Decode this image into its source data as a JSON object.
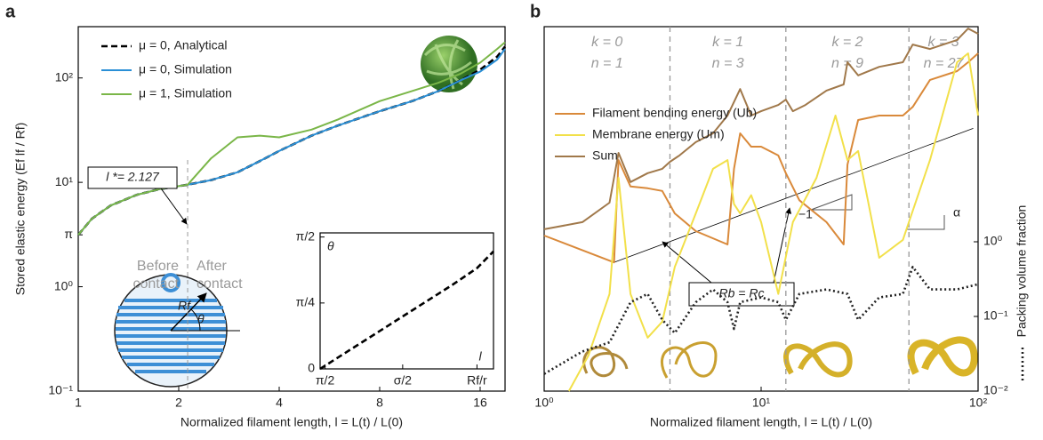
{
  "chart_data": [
    {
      "type": "line",
      "panel_label": "a",
      "xlabel": "Normalized filament length, l = L(t) / L(0)",
      "ylabel": "Stored elastic energy (Ef lf / Rf)",
      "xscale": "log",
      "yscale": "log",
      "xlim": [
        1,
        19
      ],
      "ylim": [
        0.1,
        310
      ],
      "xticks": [
        1,
        2,
        4,
        8,
        16
      ],
      "yticks": [
        {
          "value": 0.1,
          "label": "10⁻¹"
        },
        {
          "value": 1,
          "label": "10⁰"
        },
        {
          "value": 3.14159,
          "label": "π"
        },
        {
          "value": 10,
          "label": "10¹"
        },
        {
          "value": 100,
          "label": "10²"
        }
      ],
      "legend": "upper left",
      "x": [
        1,
        1.1,
        1.25,
        1.5,
        1.75,
        2,
        2.127,
        2.5,
        3,
        3.5,
        4,
        5,
        6,
        8,
        10,
        12,
        14,
        16,
        18,
        19
      ],
      "series": [
        {
          "name": "μ = 0, Analytical",
          "color": "#000000",
          "line_style": "dashed",
          "values": [
            3.14,
            4.5,
            6,
            7.6,
            8.6,
            9.2,
            9.5,
            10.5,
            12.5,
            16,
            20,
            28,
            35,
            48,
            60,
            75,
            95,
            120,
            160,
            200
          ]
        },
        {
          "name": "μ = 0, Simulation",
          "color": "#2a8fd6",
          "line_style": "solid",
          "values": [
            3.14,
            4.5,
            6,
            7.6,
            8.6,
            9.2,
            9.5,
            10.5,
            12.5,
            16,
            20,
            28,
            35,
            48,
            60,
            75,
            95,
            115,
            150,
            190
          ]
        },
        {
          "name": "μ = 1, Simulation",
          "color": "#7ab648",
          "line_style": "solid",
          "values": [
            3.14,
            4.5,
            6,
            7.6,
            8.6,
            9.2,
            9.5,
            17,
            27,
            28,
            27,
            32,
            40,
            60,
            75,
            90,
            110,
            140,
            190,
            220
          ]
        }
      ],
      "contact": {
        "value": 2.127,
        "label": "l *= 2.127"
      },
      "before_contact": [
        "Before",
        "contact"
      ],
      "after_contact": [
        "After",
        "contact"
      ]
    },
    {
      "type": "line",
      "xlabel": "l",
      "ylabel": "θ",
      "xscale": "linear",
      "yscale": "linear",
      "xlim": [
        0,
        1.05
      ],
      "ylim": [
        0,
        1.62
      ],
      "xticks": [
        {
          "value": 0.03,
          "label": "π/2"
        },
        {
          "value": 0.5,
          "label": "σ/2"
        },
        {
          "value": 0.95,
          "label": "Rf/r"
        }
      ],
      "yticks": [
        0,
        {
          "value": 0.785,
          "label": "π/4"
        },
        {
          "value": 1.571,
          "label": "π/2"
        }
      ],
      "x": [
        0,
        0.2,
        0.4,
        0.6,
        0.8,
        0.95,
        1.05
      ],
      "series": [
        {
          "color": "#000000",
          "line_style": "dashed",
          "values": [
            0,
            0.25,
            0.5,
            0.75,
            1.0,
            1.2,
            1.4
          ]
        }
      ]
    },
    {
      "type": "line",
      "panel_label": "b",
      "xlabel": "Normalized filament length, l = L(t) / L(0)",
      "xscale": "log",
      "yscale": "log",
      "xlim": [
        1,
        100
      ],
      "ylim": [
        0.01,
        760
      ],
      "y2lim": [
        0.01,
        760
      ],
      "xticks": [
        {
          "value": 1,
          "label": "10⁰"
        },
        {
          "value": 10,
          "label": "10¹"
        },
        {
          "value": 100,
          "label": "10²"
        }
      ],
      "y2ticks": [
        {
          "value": 0.01,
          "label": "10⁻²"
        },
        {
          "value": 0.1,
          "label": "10⁻¹"
        },
        {
          "value": 1,
          "label": "10⁰"
        }
      ],
      "legend": "upper left",
      "stage_bounds": [
        3.8,
        13,
        48
      ],
      "stages": [
        {
          "k": "k = 0",
          "n": "n = 1"
        },
        {
          "k": "k = 1",
          "n": "n = 3"
        },
        {
          "k": "k = 2",
          "n": "n = 9"
        },
        {
          "k": "k = 3",
          "n": "n = 27"
        }
      ],
      "series": [
        {
          "name": "Filament bending energy (Ub)",
          "color": "#d9893a",
          "line_style": "solid",
          "x": [
            1,
            2.1,
            2.2,
            2.5,
            3,
            3.5,
            4,
            5,
            7,
            7.5,
            8,
            9,
            10,
            12,
            13,
            15,
            20,
            24,
            25,
            28,
            35,
            45,
            50,
            60,
            80,
            90,
            100
          ],
          "values": [
            1.21,
            0.53,
            12.4,
            5.5,
            5.2,
            4.8,
            2.4,
            1.39,
            0.92,
            9.5,
            28.3,
            18.8,
            18.8,
            14.3,
            8.3,
            3.6,
            1.83,
            0.92,
            10.8,
            42.8,
            49,
            49,
            64,
            147,
            193,
            254,
            334
          ]
        },
        {
          "name": "Membrane energy (Um)",
          "color": "#f2e04a",
          "line_style": "solid",
          "x": [
            1.3,
            1.6,
            2,
            2.2,
            2.5,
            3,
            3.5,
            4,
            5,
            6,
            7,
            7.5,
            8,
            9,
            10,
            12,
            14,
            18,
            22,
            25,
            28,
            35,
            45,
            60,
            80,
            90,
            100
          ],
          "values": [
            0.01,
            0.03,
            0.2,
            7.2,
            0.2,
            0.052,
            0.085,
            0.46,
            2.4,
            9.5,
            12.4,
            3.2,
            2.4,
            4.2,
            1.83,
            0.2,
            1.83,
            7.2,
            49,
            12.4,
            16.4,
            0.61,
            1.06,
            12.4,
            254,
            334,
            49
          ]
        },
        {
          "name": "Sum",
          "color": "#a0784a",
          "line_style": "solid",
          "x": [
            1,
            1.5,
            2,
            2.2,
            2.5,
            3,
            3.5,
            3.8,
            4.2,
            5,
            6,
            7,
            8,
            9,
            10,
            12,
            13,
            14,
            16,
            20,
            24,
            25,
            28,
            35,
            45,
            50,
            60,
            80,
            90,
            100
          ],
          "values": [
            1.47,
            1.83,
            3.34,
            15.5,
            6.3,
            8.3,
            9.5,
            11.8,
            14.3,
            21.6,
            28.3,
            49,
            111,
            49,
            56,
            68,
            80,
            56,
            68,
            106,
            128,
            254,
            169,
            220,
            254,
            438,
            382,
            505,
            718,
            611
          ]
        },
        {
          "name": "Packing volume fraction",
          "color": "#222222",
          "line_style": "dotted",
          "axis": "y2",
          "x": [
            1,
            1.5,
            2,
            2.5,
            3,
            3.5,
            4,
            5,
            6,
            7,
            7.5,
            8,
            10,
            12,
            13,
            15,
            20,
            25,
            28,
            35,
            45,
            50,
            60,
            80,
            100
          ],
          "values": [
            0.017,
            0.034,
            0.045,
            0.155,
            0.2,
            0.09,
            0.06,
            0.155,
            0.23,
            0.155,
            0.068,
            0.155,
            0.18,
            0.155,
            0.09,
            0.2,
            0.23,
            0.2,
            0.09,
            0.18,
            0.2,
            0.46,
            0.23,
            0.23,
            0.27
          ]
        }
      ],
      "reference_line": {
        "x": [
          2.1,
          95
        ],
        "values": [
          0.53,
          33
        ]
      },
      "slope_label": "−1",
      "angle_label": "α",
      "equality_label": "Rb = Rc"
    }
  ]
}
